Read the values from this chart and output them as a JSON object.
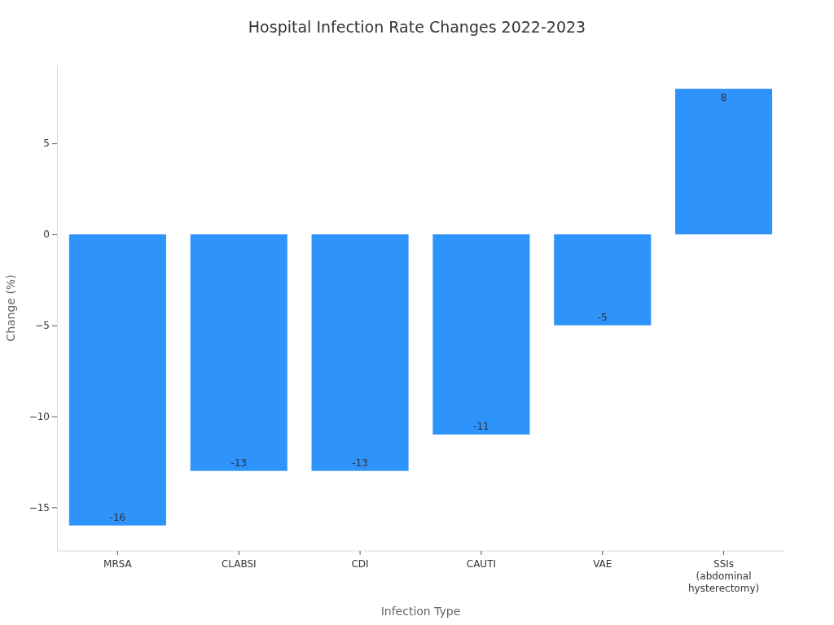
{
  "chart_data": {
    "type": "bar",
    "title": "Hospital Infection Rate Changes 2022-2023",
    "xlabel": "Infection Type",
    "ylabel": "Change (%)",
    "categories": [
      "MRSA",
      "CLABSI",
      "CDI",
      "CAUTI",
      "VAE",
      "SSIs (abdominal hysterectomy)"
    ],
    "values": [
      -16,
      -13,
      -13,
      -11,
      -5,
      8
    ],
    "color": "#2e93fa",
    "ylim": [
      -17.4,
      9.3
    ],
    "yticks": [
      {
        "value": -15,
        "label": "−15"
      },
      {
        "value": -10,
        "label": "−10"
      },
      {
        "value": -5,
        "label": "−5"
      },
      0,
      5
    ],
    "data_labels": true
  }
}
